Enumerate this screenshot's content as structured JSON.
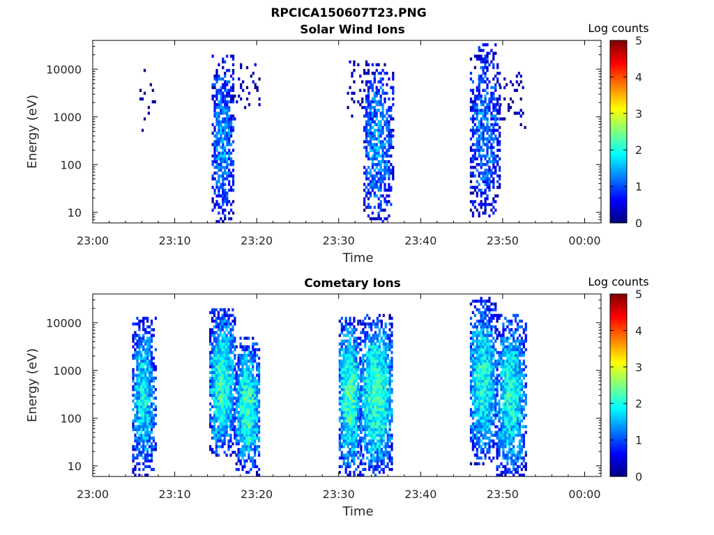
{
  "figure": {
    "title": "RPCICA150607T23.PNG"
  },
  "colormap": {
    "name": "jet",
    "stops": [
      "#00007f",
      "#0000ff",
      "#007fff",
      "#00ffff",
      "#7fff7f",
      "#ffff00",
      "#ff7f00",
      "#ff0000",
      "#7f0000"
    ]
  },
  "chart_data": [
    {
      "type": "heatmap",
      "title": "Solar Wind Ions",
      "xlabel": "Time",
      "ylabel": "Energy (eV)",
      "xticks": [
        "23:00",
        "23:10",
        "23:20",
        "23:30",
        "23:40",
        "23:50",
        "00:00"
      ],
      "xlim_minutes": [
        0,
        62
      ],
      "ylim": [
        6,
        40000
      ],
      "yscale": "log",
      "yticks": [
        "10",
        "100",
        "1000",
        "10000"
      ],
      "colorbar": {
        "label": "Log counts",
        "ticks": [
          "0",
          "1",
          "2",
          "3",
          "4",
          "5"
        ],
        "range": [
          0,
          5
        ]
      },
      "bursts": [
        {
          "t_start": 5.2,
          "t_end": 7.6,
          "e_min": 500,
          "e_max": 14000,
          "level": 0.2,
          "density": 0.06
        },
        {
          "t_start": 14.5,
          "t_end": 17.2,
          "e_min": 6,
          "e_max": 20000,
          "level": 1.3,
          "density": 0.38
        },
        {
          "t_start": 17.2,
          "t_end": 20.4,
          "e_min": 700,
          "e_max": 15000,
          "level": 0.2,
          "density": 0.08
        },
        {
          "t_start": 31.0,
          "t_end": 33.0,
          "e_min": 800,
          "e_max": 15000,
          "level": 0.2,
          "density": 0.07
        },
        {
          "t_start": 33.0,
          "t_end": 36.6,
          "e_min": 6,
          "e_max": 15000,
          "level": 1.3,
          "density": 0.38
        },
        {
          "t_start": 46.0,
          "t_end": 49.6,
          "e_min": 8,
          "e_max": 35000,
          "level": 1.2,
          "density": 0.34
        },
        {
          "t_start": 49.6,
          "t_end": 52.8,
          "e_min": 500,
          "e_max": 10000,
          "level": 0.2,
          "density": 0.08
        }
      ]
    },
    {
      "type": "heatmap",
      "title": "Cometary Ions",
      "xlabel": "Time",
      "ylabel": "Energy (eV)",
      "xticks": [
        "23:00",
        "23:10",
        "23:20",
        "23:30",
        "23:40",
        "23:50",
        "00:00"
      ],
      "xlim_minutes": [
        0,
        62
      ],
      "ylim": [
        6,
        40000
      ],
      "yscale": "log",
      "yticks": [
        "10",
        "100",
        "1000",
        "10000"
      ],
      "colorbar": {
        "label": "Log counts",
        "ticks": [
          "0",
          "1",
          "2",
          "3",
          "4",
          "5"
        ],
        "range": [
          0,
          5
        ]
      },
      "bursts": [
        {
          "t_start": 4.8,
          "t_end": 7.6,
          "e_min": 6,
          "e_max": 14000,
          "level": 1.8,
          "density": 0.48
        },
        {
          "t_start": 14.2,
          "t_end": 17.4,
          "e_min": 15,
          "e_max": 20000,
          "level": 2.1,
          "density": 0.55
        },
        {
          "t_start": 17.4,
          "t_end": 20.4,
          "e_min": 6,
          "e_max": 5000,
          "level": 2.1,
          "density": 0.55
        },
        {
          "t_start": 30.0,
          "t_end": 32.6,
          "e_min": 6,
          "e_max": 14000,
          "level": 2.2,
          "density": 0.55
        },
        {
          "t_start": 32.6,
          "t_end": 36.6,
          "e_min": 6,
          "e_max": 15000,
          "level": 2.2,
          "density": 0.55
        },
        {
          "t_start": 46.0,
          "t_end": 49.2,
          "e_min": 10,
          "e_max": 35000,
          "level": 2.0,
          "density": 0.52
        },
        {
          "t_start": 49.2,
          "t_end": 52.8,
          "e_min": 6,
          "e_max": 15000,
          "level": 2.0,
          "density": 0.52
        }
      ]
    }
  ]
}
